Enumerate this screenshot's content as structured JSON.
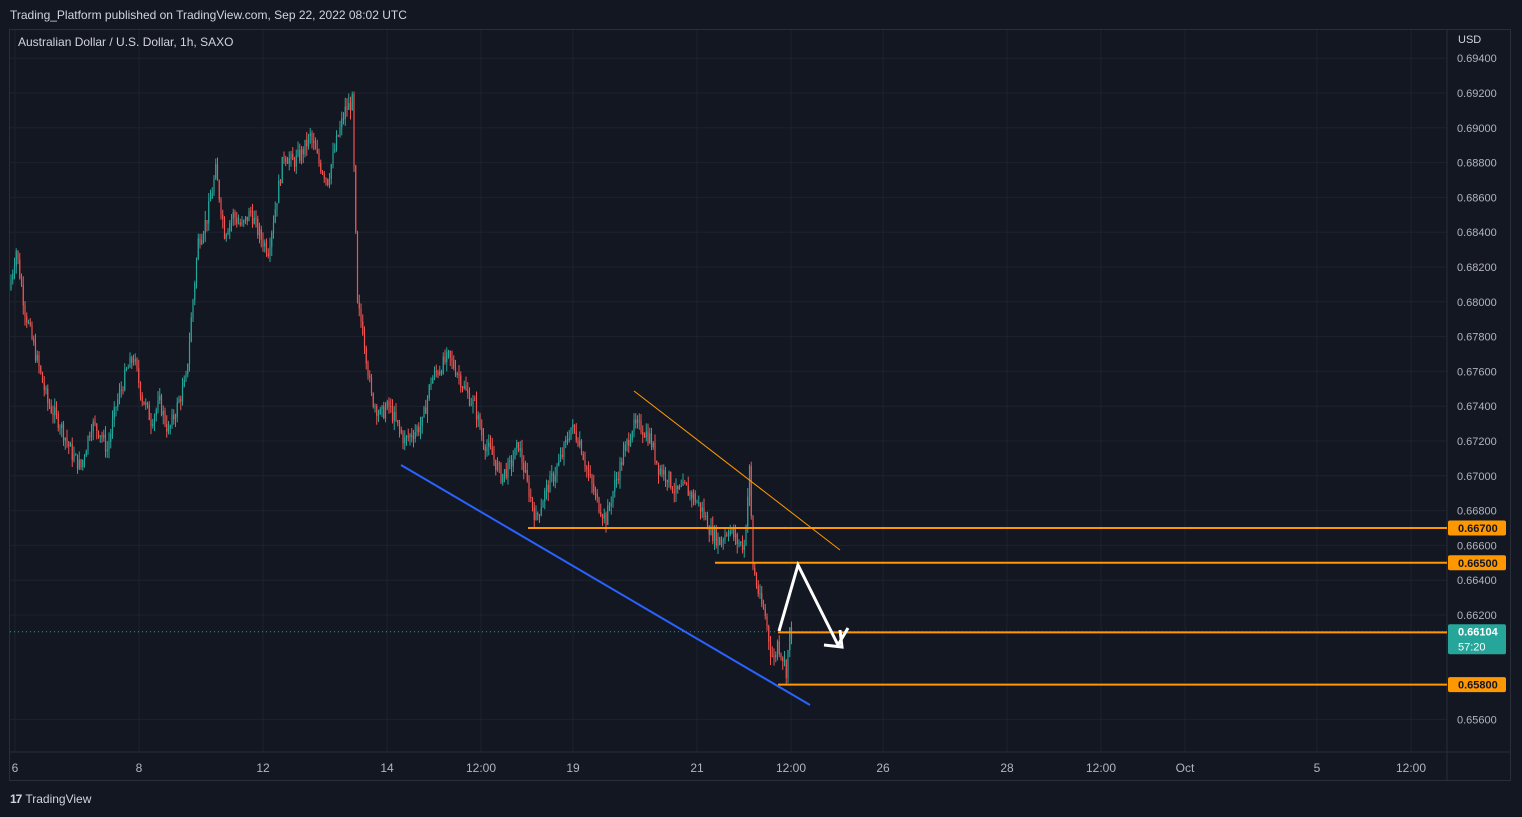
{
  "header": {
    "published_text": "Trading_Platform published on TradingView.com, Sep 22, 2022 08:02 UTC",
    "symbol": "Australian Dollar / U.S. Dollar, 1h, SAXO",
    "currency": "USD"
  },
  "footer": {
    "brand_logo": "17",
    "brand": "TradingView"
  },
  "colors": {
    "background": "#131722",
    "grid": "#1e222d",
    "up_candle": "#26a69a",
    "down_candle": "#ef5350",
    "level_line": "#ff9800",
    "trend_line": "#2962ff",
    "projection": "#ffffff",
    "current_price": "#26a69a"
  },
  "chart_data": {
    "type": "candlestick",
    "timeframe": "1h",
    "y_axis": {
      "ticks": [
        "0.69400",
        "0.69200",
        "0.69000",
        "0.68800",
        "0.68600",
        "0.68400",
        "0.68200",
        "0.68000",
        "0.67800",
        "0.67600",
        "0.67400",
        "0.67200",
        "0.67000",
        "0.66800",
        "0.66600",
        "0.66400",
        "0.66200",
        "0.65600"
      ],
      "range": [
        0.6548,
        0.6952
      ]
    },
    "x_axis": {
      "ticks": [
        "6",
        "8",
        "12",
        "14",
        "12:00",
        "19",
        "21",
        "12:00",
        "26",
        "28",
        "12:00",
        "Oct",
        "5",
        "12:00"
      ]
    },
    "price_path": [
      [
        0,
        0.6807
      ],
      [
        4,
        0.683
      ],
      [
        9,
        0.6795
      ],
      [
        15,
        0.677
      ],
      [
        22,
        0.6742
      ],
      [
        29,
        0.673
      ],
      [
        36,
        0.6712
      ],
      [
        41,
        0.6705
      ],
      [
        47,
        0.673
      ],
      [
        52,
        0.6725
      ],
      [
        56,
        0.6715
      ],
      [
        61,
        0.674
      ],
      [
        67,
        0.676
      ],
      [
        71,
        0.6768
      ],
      [
        76,
        0.6745
      ],
      [
        81,
        0.6732
      ],
      [
        86,
        0.6742
      ],
      [
        91,
        0.6725
      ],
      [
        96,
        0.674
      ],
      [
        101,
        0.6755
      ],
      [
        104,
        0.679
      ],
      [
        108,
        0.6835
      ],
      [
        113,
        0.6848
      ],
      [
        118,
        0.6875
      ],
      [
        123,
        0.684
      ],
      [
        128,
        0.685
      ],
      [
        133,
        0.6843
      ],
      [
        138,
        0.6852
      ],
      [
        143,
        0.6838
      ],
      [
        148,
        0.683
      ],
      [
        153,
        0.686
      ],
      [
        157,
        0.6885
      ],
      [
        162,
        0.688
      ],
      [
        167,
        0.6885
      ],
      [
        172,
        0.6895
      ],
      [
        177,
        0.688
      ],
      [
        182,
        0.687
      ],
      [
        187,
        0.6892
      ],
      [
        192,
        0.691
      ],
      [
        196,
        0.6915
      ],
      [
        199,
        0.6797
      ],
      [
        202,
        0.6785
      ],
      [
        207,
        0.6745
      ],
      [
        212,
        0.6735
      ],
      [
        217,
        0.674
      ],
      [
        222,
        0.6728
      ],
      [
        226,
        0.672
      ],
      [
        231,
        0.6725
      ],
      [
        236,
        0.673
      ],
      [
        241,
        0.6755
      ],
      [
        246,
        0.6762
      ],
      [
        251,
        0.6768
      ],
      [
        256,
        0.676
      ],
      [
        261,
        0.6748
      ],
      [
        266,
        0.674
      ],
      [
        271,
        0.672
      ],
      [
        276,
        0.6712
      ],
      [
        281,
        0.67
      ],
      [
        286,
        0.6705
      ],
      [
        291,
        0.6718
      ],
      [
        296,
        0.6695
      ],
      [
        301,
        0.6675
      ],
      [
        306,
        0.669
      ],
      [
        311,
        0.67
      ],
      [
        316,
        0.6712
      ],
      [
        321,
        0.6728
      ],
      [
        326,
        0.672
      ],
      [
        331,
        0.67
      ],
      [
        336,
        0.6685
      ],
      [
        341,
        0.6675
      ],
      [
        346,
        0.6695
      ],
      [
        351,
        0.6712
      ],
      [
        356,
        0.6728
      ],
      [
        361,
        0.6728
      ],
      [
        366,
        0.6722
      ],
      [
        371,
        0.6705
      ],
      [
        376,
        0.67
      ],
      [
        381,
        0.669
      ],
      [
        386,
        0.6693
      ],
      [
        391,
        0.6688
      ],
      [
        396,
        0.668
      ],
      [
        401,
        0.6668
      ],
      [
        406,
        0.6662
      ],
      [
        411,
        0.667
      ],
      [
        416,
        0.6662
      ],
      [
        420,
        0.666
      ],
      [
        423,
        0.6703
      ],
      [
        425,
        0.6648
      ],
      [
        429,
        0.6628
      ],
      [
        432,
        0.662
      ],
      [
        435,
        0.66
      ],
      [
        437,
        0.6594
      ],
      [
        439,
        0.6604
      ],
      [
        442,
        0.6596
      ],
      [
        444,
        0.6588
      ],
      [
        446,
        0.661
      ]
    ],
    "levels": [
      {
        "label": "0.66700",
        "value": 0.667
      },
      {
        "label": "0.66500",
        "value": 0.665
      },
      {
        "label": "0.66100",
        "value": 0.661
      },
      {
        "label": "0.65800",
        "value": 0.658
      }
    ],
    "current_price": {
      "label": "0.66104",
      "value": 0.66104,
      "countdown": "57:20"
    },
    "annotations": [
      {
        "type": "trendline",
        "color": "blue"
      },
      {
        "type": "trendline",
        "color": "orange"
      },
      {
        "type": "projection-arrow",
        "color": "white"
      }
    ]
  }
}
